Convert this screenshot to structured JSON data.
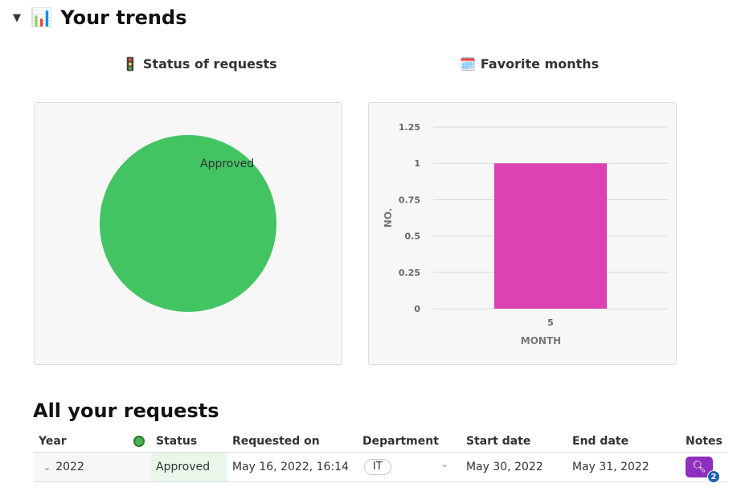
{
  "section": {
    "caret": "▼",
    "emoji": "📊",
    "title": "Your trends"
  },
  "pie": {
    "title_icon": "🚦",
    "title": "Status of requests"
  },
  "bar": {
    "title_icon": "🗓️",
    "title": "Favorite months"
  },
  "chart_data": [
    {
      "type": "pie",
      "categories": [
        "Approved"
      ],
      "values": [
        1
      ],
      "colors": [
        "#43c463"
      ],
      "title": "Status of requests"
    },
    {
      "type": "bar",
      "categories": [
        "5"
      ],
      "values": [
        1
      ],
      "color": "#dc42b4",
      "title": "Favorite months",
      "xlabel": "MONTH",
      "ylabel": "NO.",
      "ylim": [
        0,
        1.25
      ],
      "yticks": [
        "0",
        "0.25",
        "0.5",
        "0.75",
        "1",
        "1.25"
      ],
      "grid": true
    }
  ],
  "table": {
    "title": "All your requests",
    "columns": [
      "Year",
      "",
      "Status",
      "Requested on",
      "Department",
      "Start date",
      "End  date",
      "Notes"
    ],
    "status_icon": "🟢",
    "rows": [
      {
        "year": "2022",
        "status": "Approved",
        "requested_on": "May 16, 2022, 16:14",
        "department": "IT",
        "start_date": "May 30, 2022",
        "end_date": "May 31, 2022",
        "notes_count": "2"
      }
    ]
  }
}
